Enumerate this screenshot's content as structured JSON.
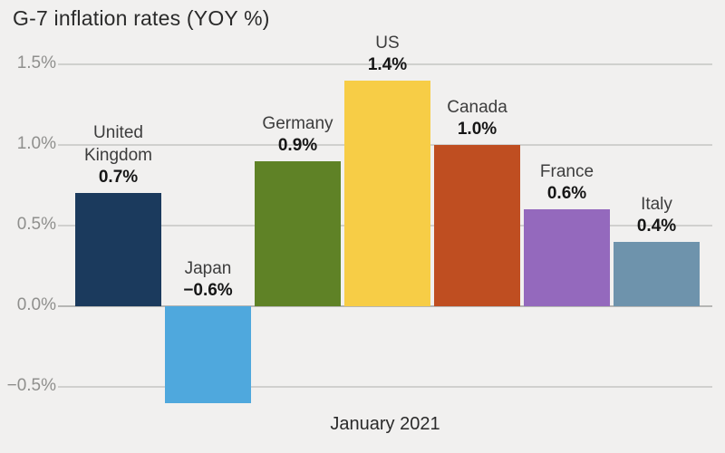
{
  "page": {
    "background": "#f1f0ef"
  },
  "chart_data": {
    "type": "bar",
    "title": "G-7 inflation rates (YOY %)",
    "xlabel": "January 2021",
    "ylabel": "",
    "categories": [
      "United Kingdom",
      "Japan",
      "Germany",
      "US",
      "Canada",
      "France",
      "Italy"
    ],
    "values": [
      0.7,
      -0.6,
      0.9,
      1.4,
      1.0,
      0.6,
      0.4
    ],
    "value_labels": [
      "0.7%",
      "−0.6%",
      "0.9%",
      "1.4%",
      "1.0%",
      "0.6%",
      "0.4%"
    ],
    "bar_colors": [
      "#1b3a5d",
      "#4fa8dd",
      "#5f8226",
      "#f7cd46",
      "#bf4e21",
      "#9469bd",
      "#6e93ac"
    ],
    "y_ticks": [
      {
        "value": 1.5,
        "label": "1.5%"
      },
      {
        "value": 1.0,
        "label": "1.0%"
      },
      {
        "value": 0.5,
        "label": "0.5%"
      },
      {
        "value": 0.0,
        "label": "0.0%"
      },
      {
        "value": -0.5,
        "label": "−0.5%"
      }
    ],
    "ylim": [
      -0.78,
      1.55
    ],
    "grid": "horizontal",
    "legend": "none"
  },
  "colors": {
    "grid": "#d0d0ce",
    "zero_line": "#b6b6b4",
    "tick_text": "#8f8f8d",
    "title_text": "#2a2a2a",
    "category_text": "#3d3d3d",
    "value_text": "#161616"
  }
}
